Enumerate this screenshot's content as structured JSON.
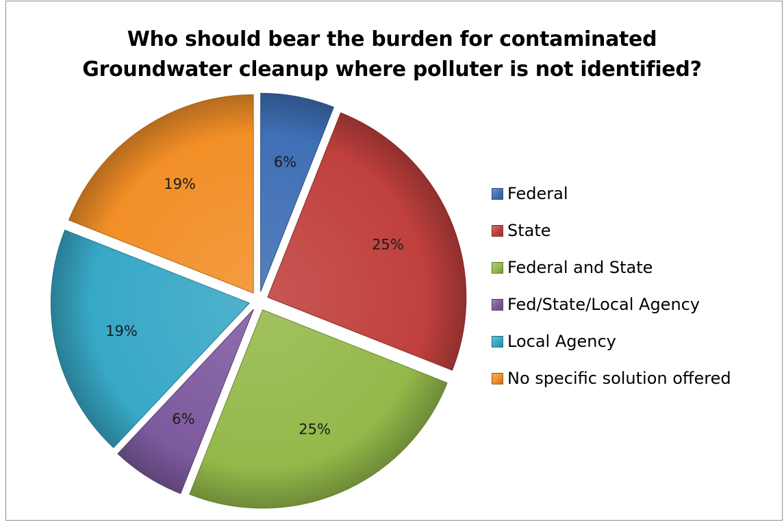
{
  "chart_data": {
    "type": "pie",
    "title_lines": [
      "Who should bear the burden for contaminated",
      "Groundwater cleanup where polluter is not identified?"
    ],
    "slices": [
      {
        "name": "Federal",
        "value": 6,
        "label": "6%",
        "color": "#3f6fb5"
      },
      {
        "name": "State",
        "value": 25,
        "label": "25%",
        "color": "#c0403d"
      },
      {
        "name": "Federal and State",
        "value": 25,
        "label": "25%",
        "color": "#94b94a"
      },
      {
        "name": "Fed/State/Local Agency",
        "value": 6,
        "label": "6%",
        "color": "#7d5a9e"
      },
      {
        "name": "Local Agency",
        "value": 19,
        "label": "19%",
        "color": "#37a8c6"
      },
      {
        "name": "No specific solution offered",
        "value": 19,
        "label": "19%",
        "color": "#f28f27"
      }
    ],
    "exploded": true,
    "legend_position": "right"
  }
}
